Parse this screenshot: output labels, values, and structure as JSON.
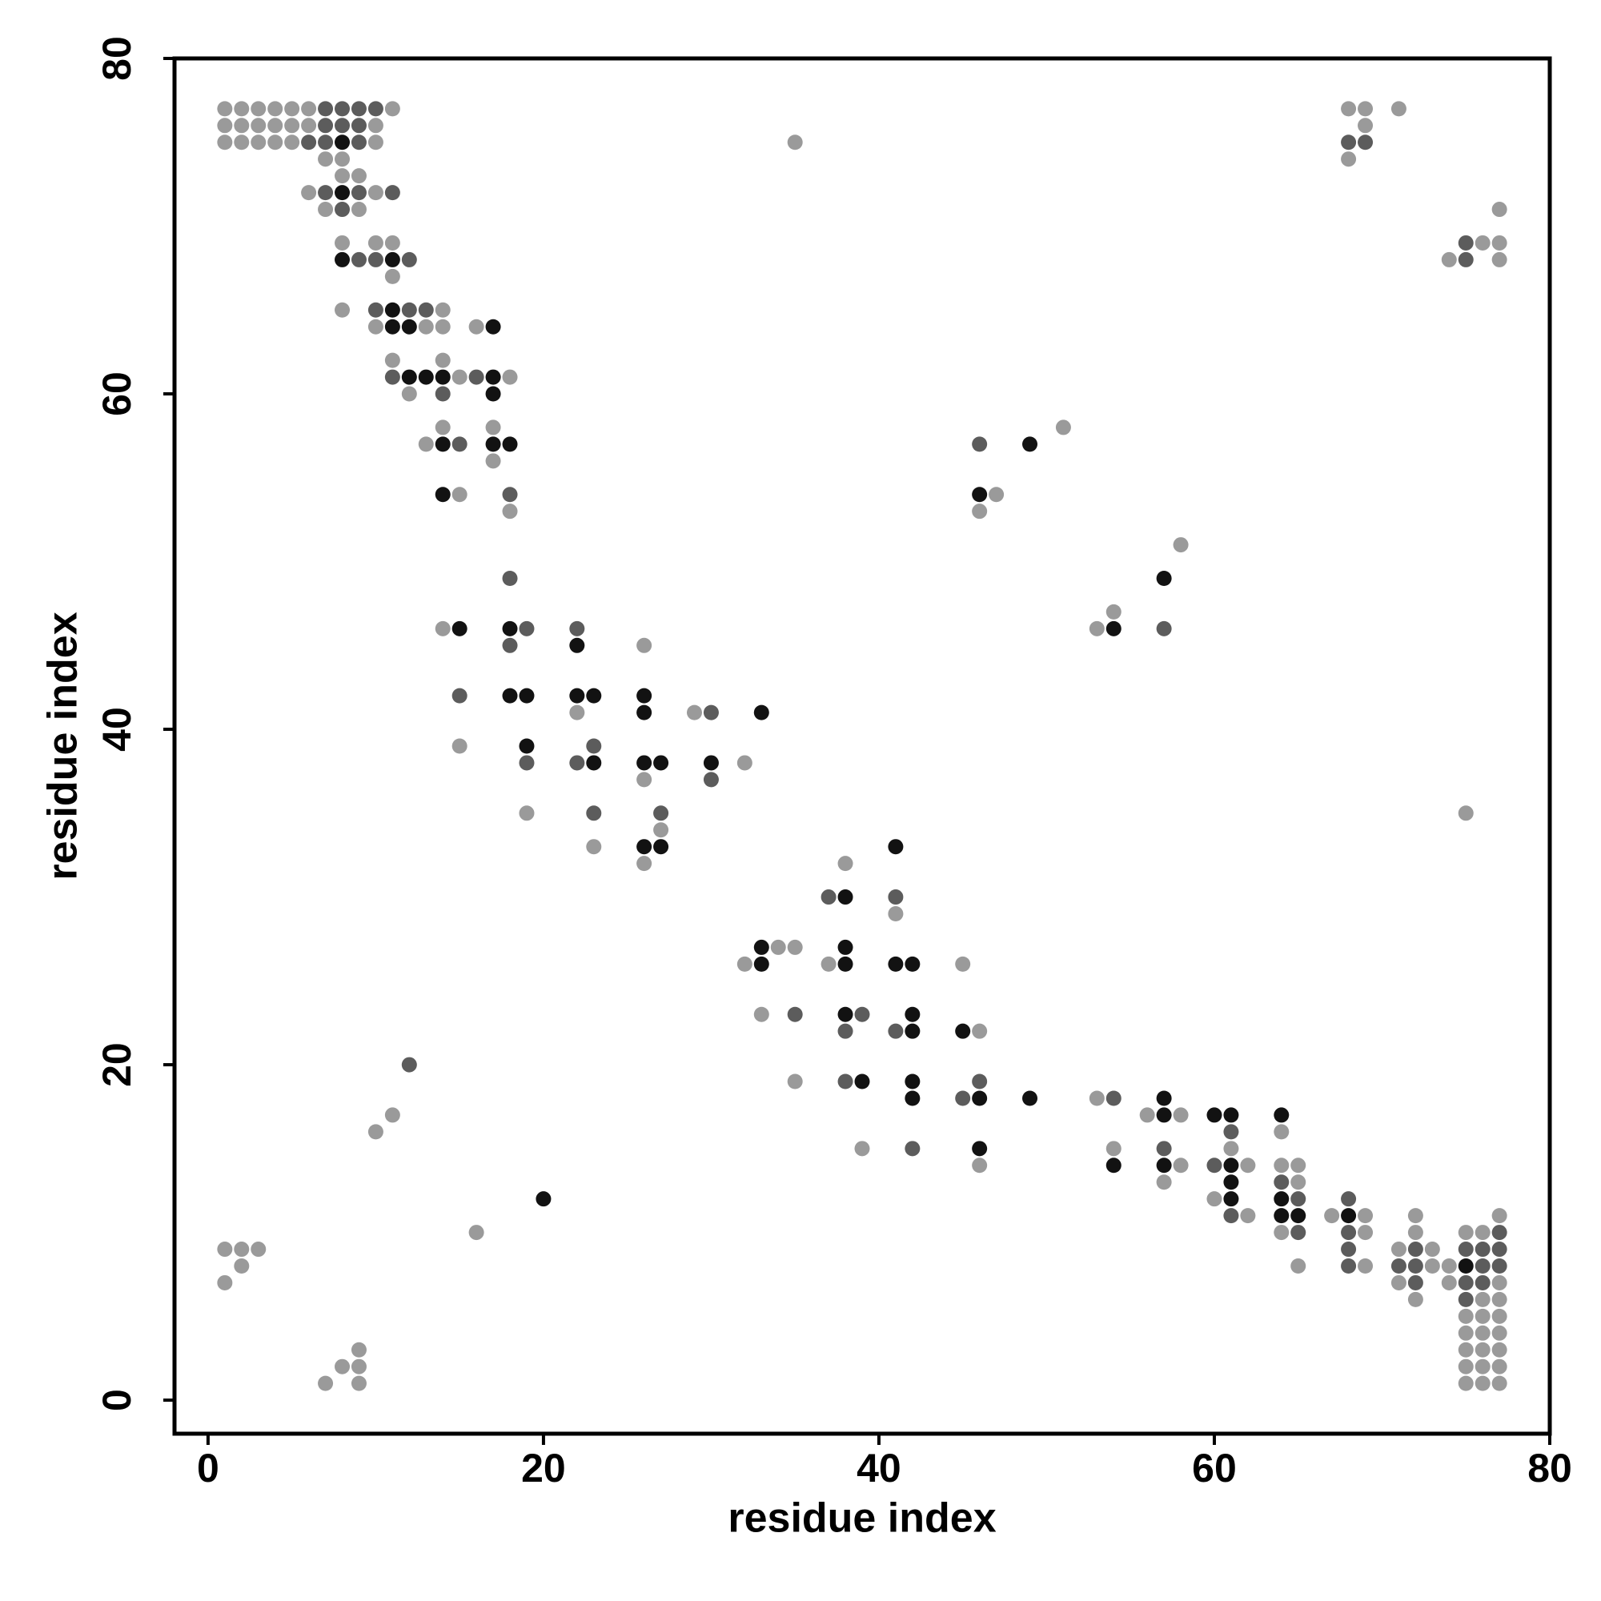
{
  "chart_data": {
    "type": "scatter",
    "x_label": "residue index",
    "y_label": "residue index",
    "xlim": [
      -2,
      80
    ],
    "ylim": [
      -2,
      80
    ],
    "xticks": [
      0,
      20,
      40,
      60,
      80
    ],
    "yticks": [
      0,
      20,
      40,
      60,
      80
    ],
    "series": [
      {
        "color": "#9a9a9a",
        "x": [
          1,
          2,
          3,
          4,
          5,
          6,
          11,
          68,
          69,
          71,
          1,
          2,
          3,
          4,
          5,
          6,
          10,
          69,
          1,
          2,
          3,
          4,
          5,
          10,
          35,
          7,
          8,
          68,
          8,
          9,
          6,
          10,
          7,
          9,
          77,
          8,
          10,
          11,
          76,
          77,
          74,
          77,
          11,
          8,
          14,
          10,
          13,
          14,
          16,
          11,
          14,
          15,
          18,
          12,
          14,
          17,
          51,
          13,
          17,
          15,
          47,
          18,
          46,
          58,
          54,
          14,
          53,
          26,
          22,
          29,
          15,
          32,
          26,
          19,
          75,
          27,
          23,
          26,
          38,
          41,
          34,
          35,
          32,
          37,
          45,
          33,
          46,
          35,
          53,
          11,
          56,
          58,
          10,
          64,
          39,
          54,
          61,
          46,
          58,
          62,
          64,
          65,
          57,
          65,
          60,
          62,
          67,
          69,
          72,
          77,
          16,
          64,
          69,
          72,
          75,
          76,
          1,
          2,
          3,
          71,
          73,
          2,
          65,
          69,
          73,
          74,
          1,
          71,
          74,
          77,
          72,
          76,
          77,
          75,
          76,
          77,
          75,
          76,
          77,
          9,
          75,
          76,
          77,
          8,
          9,
          75,
          76,
          77,
          7,
          9,
          75,
          76,
          77
        ],
        "values": [
          77,
          77,
          77,
          77,
          77,
          77,
          77,
          77,
          77,
          77,
          76,
          76,
          76,
          76,
          76,
          76,
          76,
          76,
          75,
          75,
          75,
          75,
          75,
          75,
          75,
          74,
          74,
          74,
          73,
          73,
          72,
          72,
          71,
          71,
          71,
          69,
          69,
          69,
          69,
          69,
          68,
          68,
          67,
          65,
          65,
          64,
          64,
          64,
          64,
          62,
          62,
          61,
          61,
          60,
          58,
          58,
          58,
          57,
          56,
          54,
          54,
          53,
          53,
          51,
          47,
          46,
          46,
          45,
          41,
          41,
          39,
          38,
          37,
          35,
          35,
          34,
          33,
          32,
          32,
          29,
          27,
          27,
          26,
          26,
          26,
          23,
          22,
          19,
          18,
          17,
          17,
          17,
          16,
          16,
          15,
          15,
          15,
          14,
          14,
          14,
          14,
          14,
          13,
          13,
          12,
          11,
          11,
          11,
          11,
          11,
          10,
          10,
          10,
          10,
          10,
          10,
          9,
          9,
          9,
          9,
          9,
          8,
          8,
          8,
          8,
          8,
          7,
          7,
          7,
          7,
          6,
          6,
          6,
          5,
          5,
          5,
          4,
          4,
          4,
          3,
          3,
          3,
          3,
          2,
          2,
          2,
          2,
          2,
          1,
          1,
          1,
          1,
          1
        ]
      },
      {
        "color": "#5c5c5c",
        "x": [
          7,
          8,
          9,
          10,
          7,
          8,
          9,
          6,
          7,
          9,
          68,
          69,
          7,
          9,
          11,
          8,
          75,
          9,
          10,
          12,
          75,
          10,
          12,
          13,
          11,
          16,
          14,
          15,
          46,
          18,
          18,
          19,
          22,
          57,
          18,
          15,
          30,
          23,
          19,
          22,
          30,
          23,
          27,
          37,
          41,
          35,
          39,
          38,
          41,
          12,
          38,
          46,
          45,
          54,
          61,
          42,
          57,
          60,
          64,
          65,
          68,
          61,
          65,
          68,
          77,
          68,
          72,
          75,
          76,
          77,
          68,
          71,
          72,
          76,
          77,
          72,
          75,
          76,
          75
        ],
        "values": [
          77,
          77,
          77,
          77,
          76,
          76,
          76,
          75,
          75,
          75,
          75,
          75,
          72,
          72,
          72,
          71,
          69,
          68,
          68,
          68,
          68,
          65,
          65,
          65,
          61,
          61,
          60,
          57,
          57,
          54,
          49,
          46,
          46,
          46,
          45,
          42,
          41,
          39,
          38,
          38,
          37,
          35,
          35,
          30,
          30,
          23,
          23,
          22,
          22,
          20,
          19,
          19,
          18,
          18,
          16,
          15,
          15,
          14,
          13,
          12,
          12,
          11,
          10,
          10,
          10,
          9,
          9,
          9,
          9,
          9,
          8,
          8,
          8,
          8,
          8,
          7,
          7,
          7,
          6
        ]
      },
      {
        "color": "#121212",
        "x": [
          8,
          8,
          8,
          11,
          11,
          11,
          12,
          17,
          12,
          13,
          14,
          17,
          17,
          14,
          17,
          18,
          49,
          14,
          46,
          57,
          15,
          18,
          54,
          22,
          18,
          19,
          22,
          23,
          26,
          26,
          33,
          19,
          23,
          26,
          27,
          30,
          26,
          27,
          41,
          38,
          33,
          38,
          33,
          38,
          41,
          42,
          38,
          42,
          42,
          45,
          39,
          42,
          42,
          46,
          49,
          57,
          57,
          60,
          61,
          64,
          46,
          54,
          57,
          61,
          61,
          20,
          61,
          64,
          64,
          65,
          68,
          75
        ],
        "values": [
          75,
          72,
          68,
          68,
          65,
          64,
          64,
          64,
          61,
          61,
          61,
          61,
          60,
          57,
          57,
          57,
          57,
          54,
          54,
          49,
          46,
          46,
          46,
          45,
          42,
          42,
          42,
          42,
          42,
          41,
          41,
          39,
          38,
          38,
          38,
          38,
          33,
          33,
          33,
          30,
          27,
          27,
          26,
          26,
          26,
          26,
          23,
          23,
          22,
          22,
          19,
          19,
          18,
          18,
          18,
          18,
          17,
          17,
          17,
          17,
          15,
          14,
          14,
          14,
          13,
          12,
          12,
          12,
          11,
          11,
          11,
          8
        ]
      }
    ]
  }
}
